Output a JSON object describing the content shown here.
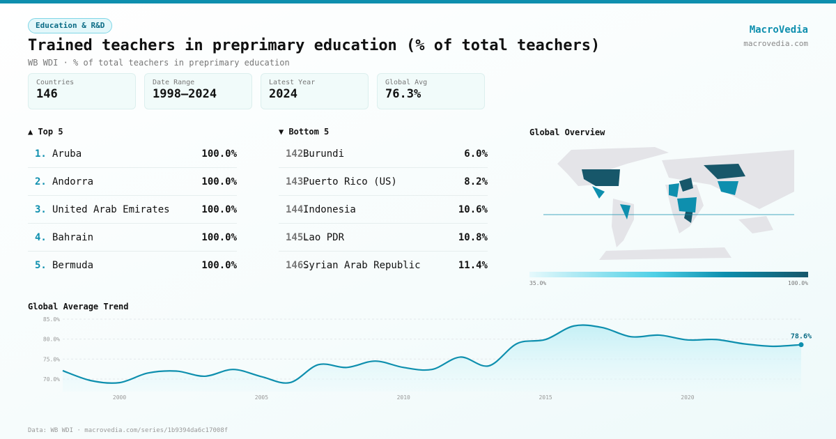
{
  "badge": "Education & R&D",
  "title": "Trained teachers in preprimary education (% of total teachers)",
  "subtitle": "WB WDI · % of total teachers in preprimary education",
  "brand": {
    "name": "MacroVedia",
    "url": "macrovedia.com"
  },
  "stats": [
    {
      "label": "Countries",
      "value": "146"
    },
    {
      "label": "Date Range",
      "value": "1998–2024"
    },
    {
      "label": "Latest Year",
      "value": "2024"
    },
    {
      "label": "Global Avg",
      "value": "76.3%"
    }
  ],
  "top5": {
    "title": "▲ Top 5",
    "items": [
      {
        "rank": "1.",
        "name": "Aruba",
        "value": "100.0%"
      },
      {
        "rank": "2.",
        "name": "Andorra",
        "value": "100.0%"
      },
      {
        "rank": "3.",
        "name": "United Arab Emirates",
        "value": "100.0%"
      },
      {
        "rank": "4.",
        "name": "Bahrain",
        "value": "100.0%"
      },
      {
        "rank": "5.",
        "name": "Bermuda",
        "value": "100.0%"
      }
    ]
  },
  "bottom5": {
    "title": "▼ Bottom 5",
    "items": [
      {
        "rank": "142.",
        "name": "Burundi",
        "value": "6.0%"
      },
      {
        "rank": "143.",
        "name": "Puerto Rico (US)",
        "value": "8.2%"
      },
      {
        "rank": "144.",
        "name": "Indonesia",
        "value": "10.6%"
      },
      {
        "rank": "145.",
        "name": "Lao PDR",
        "value": "10.8%"
      },
      {
        "rank": "146.",
        "name": "Syrian Arab Republic",
        "value": "11.4%"
      }
    ]
  },
  "map": {
    "title": "Global Overview",
    "legend_min": "35.0%",
    "legend_max": "100.0%"
  },
  "footer": "Data: WB WDI · macrovedia.com/series/1b9394da6c17008f",
  "chart_data": {
    "type": "area",
    "title": "Global Average Trend",
    "x": [
      1998,
      1999,
      2000,
      2001,
      2002,
      2003,
      2004,
      2005,
      2006,
      2007,
      2008,
      2009,
      2010,
      2011,
      2012,
      2013,
      2014,
      2015,
      2016,
      2017,
      2018,
      2019,
      2020,
      2021,
      2022,
      2023,
      2024
    ],
    "values": [
      72.1,
      69.6,
      69.1,
      71.5,
      72.0,
      70.7,
      72.4,
      70.6,
      69.1,
      73.6,
      72.9,
      74.5,
      72.9,
      72.4,
      75.5,
      73.3,
      78.9,
      79.9,
      83.3,
      82.9,
      80.6,
      81.0,
      79.8,
      79.9,
      78.8,
      78.2,
      78.6
    ],
    "yticks": [
      "70.0%",
      "75.0%",
      "80.0%",
      "85.0%"
    ],
    "ytick_values": [
      70,
      75,
      80,
      85
    ],
    "xticks": [
      "2000",
      "2005",
      "2010",
      "2015",
      "2020"
    ],
    "xtick_values": [
      2000,
      2005,
      2010,
      2015,
      2020
    ],
    "ylim": [
      67.5,
      85
    ],
    "last_label": "78.6%",
    "color": "#0e8fae"
  }
}
